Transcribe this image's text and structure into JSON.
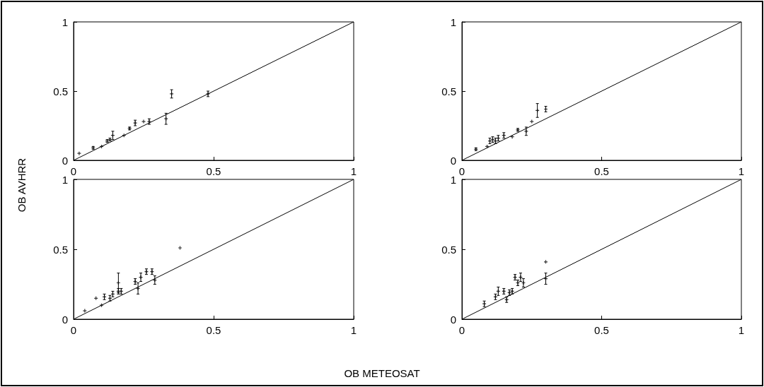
{
  "chart_data": [
    {
      "type": "scatter",
      "ylabel": "OB AVHRR",
      "xlim": [
        0,
        1
      ],
      "ylim": [
        0,
        1
      ],
      "xticks": [
        0,
        0.5,
        1
      ],
      "yticks": [
        0,
        0.5,
        1
      ],
      "grid": false,
      "series": [
        {
          "marker": "cross",
          "color": "#000000",
          "x": [
            0.02,
            0.07,
            0.1,
            0.12,
            0.13,
            0.14,
            0.18,
            0.2,
            0.22,
            0.25,
            0.27,
            0.33,
            0.35,
            0.48
          ],
          "values": [
            0.05,
            0.09,
            0.1,
            0.14,
            0.15,
            0.18,
            0.18,
            0.23,
            0.27,
            0.28,
            0.28,
            0.3,
            0.48,
            0.48
          ],
          "errors": [
            null,
            0.01,
            null,
            0.01,
            0.01,
            0.03,
            null,
            0.01,
            0.02,
            null,
            0.02,
            0.04,
            0.03,
            0.02
          ]
        },
        {
          "type": "line",
          "marker": "none",
          "color": "#000000",
          "x": [
            0,
            1
          ],
          "values": [
            0,
            1
          ]
        }
      ]
    },
    {
      "type": "scatter",
      "xlim": [
        0,
        1
      ],
      "ylim": [
        0,
        1
      ],
      "xticks": [
        0,
        0.5,
        1
      ],
      "yticks": [
        0,
        0.5,
        1
      ],
      "grid": false,
      "series": [
        {
          "marker": "cross",
          "color": "#000000",
          "x": [
            0.05,
            0.09,
            0.1,
            0.11,
            0.12,
            0.13,
            0.15,
            0.18,
            0.2,
            0.23,
            0.25,
            0.27,
            0.3
          ],
          "values": [
            0.08,
            0.1,
            0.14,
            0.15,
            0.14,
            0.16,
            0.18,
            0.17,
            0.22,
            0.21,
            0.28,
            0.36,
            0.37
          ],
          "errors": [
            0.01,
            null,
            0.02,
            0.02,
            0.02,
            0.02,
            0.02,
            null,
            0.01,
            0.03,
            null,
            0.05,
            0.02
          ]
        },
        {
          "type": "line",
          "marker": "none",
          "color": "#000000",
          "x": [
            0,
            1
          ],
          "values": [
            0,
            1
          ]
        }
      ]
    },
    {
      "type": "scatter",
      "xlabel": "OB METEOSAT",
      "xlim": [
        0,
        1
      ],
      "ylim": [
        0,
        1
      ],
      "xticks": [
        0,
        0.5,
        1
      ],
      "yticks": [
        0,
        0.5,
        1
      ],
      "grid": false,
      "series": [
        {
          "marker": "cross",
          "color": "#000000",
          "x": [
            0.04,
            0.08,
            0.1,
            0.11,
            0.13,
            0.14,
            0.16,
            0.16,
            0.17,
            0.22,
            0.23,
            0.24,
            0.26,
            0.28,
            0.29,
            0.38
          ],
          "values": [
            0.06,
            0.15,
            0.1,
            0.16,
            0.15,
            0.18,
            0.26,
            0.2,
            0.2,
            0.27,
            0.22,
            0.3,
            0.34,
            0.34,
            0.28,
            0.51
          ],
          "errors": [
            null,
            null,
            null,
            0.02,
            0.02,
            0.02,
            0.07,
            0.02,
            0.02,
            0.02,
            0.04,
            0.03,
            0.02,
            0.02,
            0.03,
            null
          ]
        },
        {
          "type": "line",
          "marker": "none",
          "color": "#000000",
          "x": [
            0,
            1
          ],
          "values": [
            0,
            1
          ]
        }
      ]
    },
    {
      "type": "scatter",
      "xlim": [
        0,
        1
      ],
      "ylim": [
        0,
        1
      ],
      "xticks": [
        0,
        0.5,
        1
      ],
      "yticks": [
        0,
        0.5,
        1
      ],
      "grid": false,
      "series": [
        {
          "marker": "cross",
          "color": "#000000",
          "x": [
            0.08,
            0.12,
            0.13,
            0.15,
            0.16,
            0.17,
            0.18,
            0.19,
            0.2,
            0.21,
            0.22,
            0.3,
            0.3
          ],
          "values": [
            0.11,
            0.16,
            0.2,
            0.2,
            0.14,
            0.19,
            0.2,
            0.3,
            0.26,
            0.3,
            0.26,
            0.29,
            0.41
          ],
          "errors": [
            0.02,
            0.02,
            0.03,
            0.02,
            0.02,
            0.02,
            0.02,
            0.02,
            0.02,
            0.03,
            0.03,
            0.04,
            null
          ]
        },
        {
          "type": "line",
          "marker": "none",
          "color": "#000000",
          "x": [
            0,
            1
          ],
          "values": [
            0,
            1
          ]
        }
      ]
    }
  ]
}
